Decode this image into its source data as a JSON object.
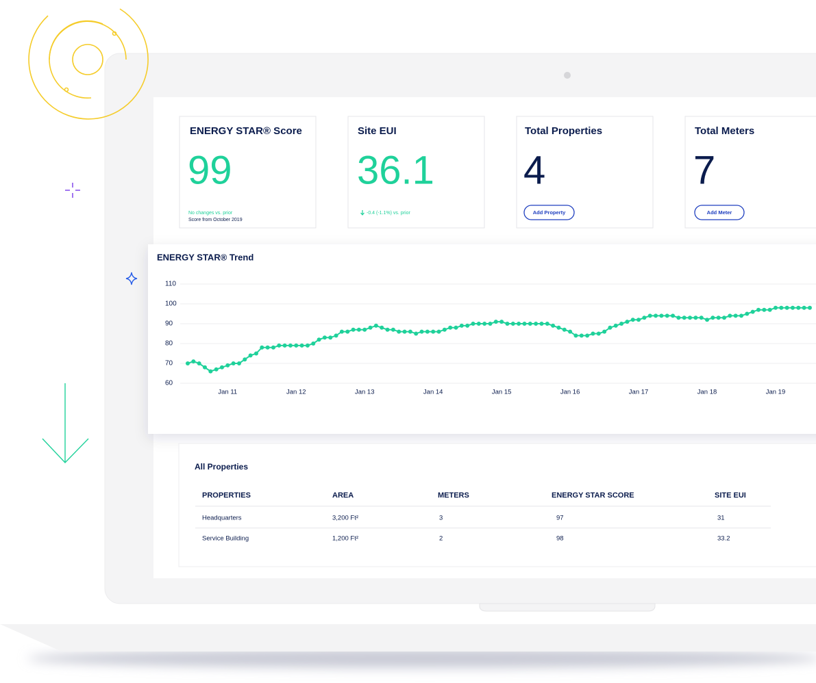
{
  "cards": [
    {
      "title": "ENERGY STAR® Score",
      "value": "99",
      "change": "No changes vs. prior",
      "note": "Score from October 2019"
    },
    {
      "title": "Site EUI",
      "value": "36.1",
      "change": "-0.4 (-1.1%) vs. prior"
    },
    {
      "title": "Total Properties",
      "value": "4",
      "button": "Add Property"
    },
    {
      "title": "Total Meters",
      "value": "7",
      "button": "Add Meter"
    }
  ],
  "chart_data": {
    "type": "line",
    "title": "ENERGY STAR® Trend",
    "categories": [
      null,
      null,
      null,
      null,
      null,
      null,
      null,
      "Jan 11",
      null,
      null,
      null,
      null,
      null,
      null,
      null,
      null,
      null,
      null,
      null,
      "Jan 12",
      null,
      null,
      null,
      null,
      null,
      null,
      null,
      null,
      null,
      null,
      null,
      "Jan 13",
      null,
      null,
      null,
      null,
      null,
      null,
      null,
      null,
      null,
      null,
      null,
      "Jan 14",
      null,
      null,
      null,
      null,
      null,
      null,
      null,
      null,
      null,
      null,
      null,
      "Jan 15",
      null,
      null,
      null,
      null,
      null,
      null,
      null,
      null,
      null,
      null,
      null,
      "Jan 16",
      null,
      null,
      null,
      null,
      null,
      null,
      null,
      null,
      null,
      null,
      null,
      "Jan 17",
      null,
      null,
      null,
      null,
      null,
      null,
      null,
      null,
      null,
      null,
      null,
      "Jan 18",
      null,
      null,
      null,
      null,
      null,
      null,
      null,
      null,
      null,
      null,
      null,
      "Jan 19",
      null,
      null,
      null,
      null,
      null,
      null
    ],
    "values": [
      70,
      71,
      70,
      68,
      66,
      67,
      68,
      69,
      70,
      70,
      72,
      74,
      75,
      78,
      78,
      78,
      79,
      79,
      79,
      79,
      79,
      79,
      80,
      82,
      83,
      83,
      84,
      86,
      86,
      87,
      87,
      87,
      88,
      89,
      88,
      87,
      87,
      86,
      86,
      86,
      85,
      86,
      86,
      86,
      86,
      87,
      88,
      88,
      89,
      89,
      90,
      90,
      90,
      90,
      91,
      91,
      90,
      90,
      90,
      90,
      90,
      90,
      90,
      90,
      89,
      88,
      87,
      86,
      84,
      84,
      84,
      85,
      85,
      86,
      88,
      89,
      90,
      91,
      92,
      92,
      93,
      94,
      94,
      94,
      94,
      94,
      93,
      93,
      93,
      93,
      93,
      92,
      93,
      93,
      93,
      94,
      94,
      94,
      95,
      96,
      97,
      97,
      97,
      98,
      98,
      98,
      98,
      98,
      98,
      98
    ],
    "color": "#1fd19a",
    "ylim": [
      60,
      110
    ],
    "yticks": [
      60,
      70,
      80,
      90,
      100,
      110
    ],
    "grid": true
  },
  "table": {
    "title": "All Properties",
    "columns": [
      "PROPERTIES",
      "AREA",
      "METERS",
      "ENERGY STAR SCORE",
      "SITE EUI"
    ],
    "rows": [
      [
        "Headquarters",
        "3,200 Ft²",
        "3",
        "97",
        "31"
      ],
      [
        "Service Building",
        "1,200 Ft²",
        "2",
        "98",
        "33.2"
      ]
    ]
  }
}
